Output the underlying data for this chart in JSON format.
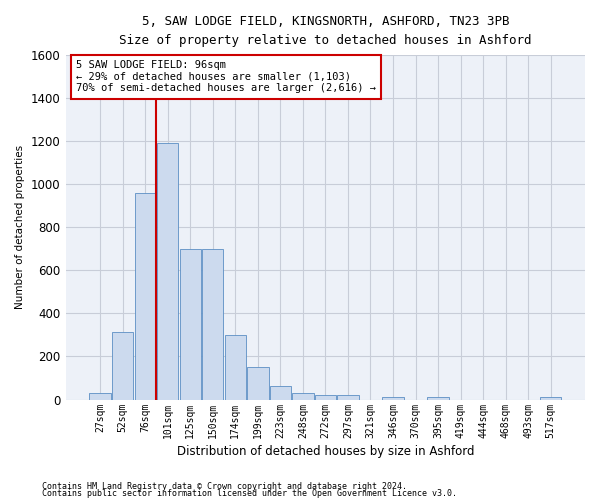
{
  "title_line1": "5, SAW LODGE FIELD, KINGSNORTH, ASHFORD, TN23 3PB",
  "title_line2": "Size of property relative to detached houses in Ashford",
  "xlabel": "Distribution of detached houses by size in Ashford",
  "ylabel": "Number of detached properties",
  "annotation_line1": "5 SAW LODGE FIELD: 96sqm",
  "annotation_line2": "← 29% of detached houses are smaller (1,103)",
  "annotation_line3": "70% of semi-detached houses are larger (2,616) →",
  "footnote1": "Contains HM Land Registry data © Crown copyright and database right 2024.",
  "footnote2": "Contains public sector information licensed under the Open Government Licence v3.0.",
  "categories": [
    "27sqm",
    "52sqm",
    "76sqm",
    "101sqm",
    "125sqm",
    "150sqm",
    "174sqm",
    "199sqm",
    "223sqm",
    "248sqm",
    "272sqm",
    "297sqm",
    "321sqm",
    "346sqm",
    "370sqm",
    "395sqm",
    "419sqm",
    "444sqm",
    "468sqm",
    "493sqm",
    "517sqm"
  ],
  "values": [
    30,
    315,
    960,
    1190,
    700,
    700,
    300,
    150,
    65,
    30,
    20,
    20,
    0,
    12,
    0,
    12,
    0,
    0,
    0,
    0,
    12
  ],
  "bar_color": "#ccdaee",
  "bar_edge_color": "#5b8ec4",
  "vline_x": 2.5,
  "vline_color": "#cc0000",
  "ylim": [
    0,
    1600
  ],
  "yticks": [
    0,
    200,
    400,
    600,
    800,
    1000,
    1200,
    1400,
    1600
  ],
  "grid_color": "#c8cdd8",
  "background_color": "#edf1f8",
  "annotation_box_color": "white",
  "annotation_box_edge_color": "#cc0000"
}
